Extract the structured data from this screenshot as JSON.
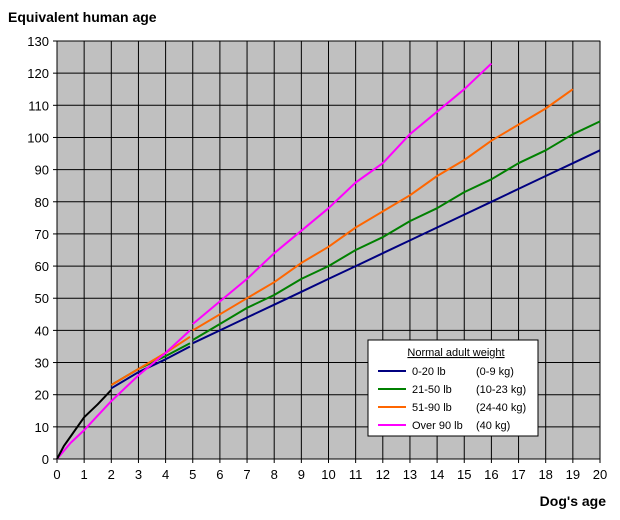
{
  "chart_data": {
    "type": "line",
    "ylabel": "Equivalent human age",
    "xlabel": "Dog's age",
    "xlim": [
      0,
      20
    ],
    "ylim": [
      0,
      130
    ],
    "x_ticks": [
      0,
      1,
      2,
      3,
      4,
      5,
      6,
      7,
      8,
      9,
      10,
      11,
      12,
      13,
      14,
      15,
      16,
      17,
      18,
      19,
      20
    ],
    "y_ticks": [
      0,
      10,
      20,
      30,
      40,
      50,
      60,
      70,
      80,
      90,
      100,
      110,
      120,
      130
    ],
    "grid": true,
    "plot_background": "#c0c0c0",
    "legend": {
      "title": "Normal adult weight",
      "placement": "bottom-right"
    },
    "series": [
      {
        "name": "0-20 lb",
        "kg": "(0-9 kg)",
        "color": "#000080",
        "x": [
          2,
          3,
          4,
          4.9
        ],
        "y": [
          22,
          27,
          31,
          35
        ]
      },
      {
        "name": "0-20 lb",
        "kg": "(0-9 kg)",
        "color": "#000080",
        "x": [
          5,
          6,
          7,
          8,
          9,
          10,
          11,
          12,
          13,
          14,
          15,
          16,
          17,
          18,
          19,
          20
        ],
        "y": [
          36,
          40,
          44,
          48,
          52,
          56,
          60,
          64,
          68,
          72,
          76,
          80,
          84,
          88,
          92,
          96
        ],
        "legend": true
      },
      {
        "name": "21-50 lb",
        "kg": "(10-23 kg)",
        "color": "#008000",
        "x": [
          2,
          3,
          4,
          4.9
        ],
        "y": [
          23,
          28,
          32,
          36
        ]
      },
      {
        "name": "21-50 lb",
        "kg": "(10-23 kg)",
        "color": "#008000",
        "x": [
          5,
          6,
          7,
          8,
          9,
          10,
          11,
          12,
          13,
          14,
          15,
          16,
          17,
          18,
          19,
          20
        ],
        "y": [
          37,
          42,
          47,
          51,
          56,
          60,
          65,
          69,
          74,
          78,
          83,
          87,
          92,
          96,
          101,
          105
        ],
        "legend": true
      },
      {
        "name": "51-90 lb",
        "kg": "(24-40 kg)",
        "color": "#ff6600",
        "x": [
          2,
          3,
          4,
          4.9
        ],
        "y": [
          23,
          28,
          33,
          38
        ]
      },
      {
        "name": "51-90 lb",
        "kg": "(24-40 kg)",
        "color": "#ff6600",
        "x": [
          5,
          6,
          7,
          8,
          9,
          10,
          11,
          12,
          13,
          14,
          15,
          16,
          17,
          18,
          19
        ],
        "y": [
          40,
          45,
          50,
          55,
          61,
          66,
          72,
          77,
          82,
          88,
          93,
          99,
          104,
          109,
          115
        ],
        "legend": true
      },
      {
        "name": "Over 90 lb",
        "kg": "(40 kg)",
        "color": "#ff00ff",
        "x": [
          0,
          0.5,
          1,
          2,
          3,
          4,
          4.9
        ],
        "y": [
          0,
          5,
          9,
          18,
          26,
          33,
          40
        ]
      },
      {
        "name": "Over 90 lb",
        "kg": "(40 kg)",
        "color": "#ff00ff",
        "x": [
          5,
          6,
          7,
          8,
          9,
          10,
          11,
          12,
          13,
          14,
          15,
          16
        ],
        "y": [
          42,
          49,
          56,
          64,
          71,
          78,
          86,
          92,
          101,
          108,
          115,
          123
        ],
        "legend": true
      },
      {
        "name": "",
        "kg": "",
        "color": "#000000",
        "x": [
          0,
          0.25,
          0.5,
          0.75,
          1,
          1.5,
          2
        ],
        "y": [
          0,
          4,
          7,
          10,
          13,
          17,
          21.5
        ]
      }
    ]
  }
}
